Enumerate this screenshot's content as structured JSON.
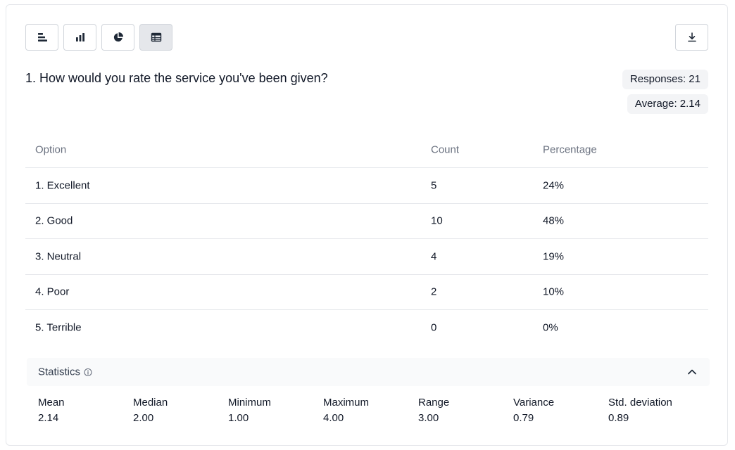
{
  "toolbar": {
    "views": [
      {
        "name": "horizontal-bar-view",
        "icon": "horizontal-bars-icon",
        "active": false
      },
      {
        "name": "vertical-bar-view",
        "icon": "vertical-bars-icon",
        "active": false
      },
      {
        "name": "pie-view",
        "icon": "pie-chart-icon",
        "active": false
      },
      {
        "name": "table-view",
        "icon": "table-icon",
        "active": true
      }
    ],
    "download_icon": "download-icon"
  },
  "question": {
    "title": "1. How would you rate the service you've been given?",
    "responses_label": "Responses: 21",
    "average_label": "Average: 2.14"
  },
  "table": {
    "headers": {
      "option": "Option",
      "count": "Count",
      "percentage": "Percentage"
    },
    "rows": [
      {
        "option": "1. Excellent",
        "count": "5",
        "percentage": "24%"
      },
      {
        "option": "2. Good",
        "count": "10",
        "percentage": "48%"
      },
      {
        "option": "3. Neutral",
        "count": "4",
        "percentage": "19%"
      },
      {
        "option": "4. Poor",
        "count": "2",
        "percentage": "10%"
      },
      {
        "option": "5. Terrible",
        "count": "0",
        "percentage": "0%"
      }
    ]
  },
  "statistics": {
    "title": "Statistics",
    "info_icon": "info-icon",
    "toggle_icon": "chevron-up-icon",
    "items": [
      {
        "label": "Mean",
        "value": "2.14"
      },
      {
        "label": "Median",
        "value": "2.00"
      },
      {
        "label": "Minimum",
        "value": "1.00"
      },
      {
        "label": "Maximum",
        "value": "4.00"
      },
      {
        "label": "Range",
        "value": "3.00"
      },
      {
        "label": "Variance",
        "value": "0.79"
      },
      {
        "label": "Std. deviation",
        "value": "0.89"
      }
    ]
  },
  "colors": {
    "border": "#e5e7eb",
    "muted_text": "#6b7280",
    "badge_bg": "#f3f4f6",
    "active_button_bg": "#e5e7eb"
  }
}
